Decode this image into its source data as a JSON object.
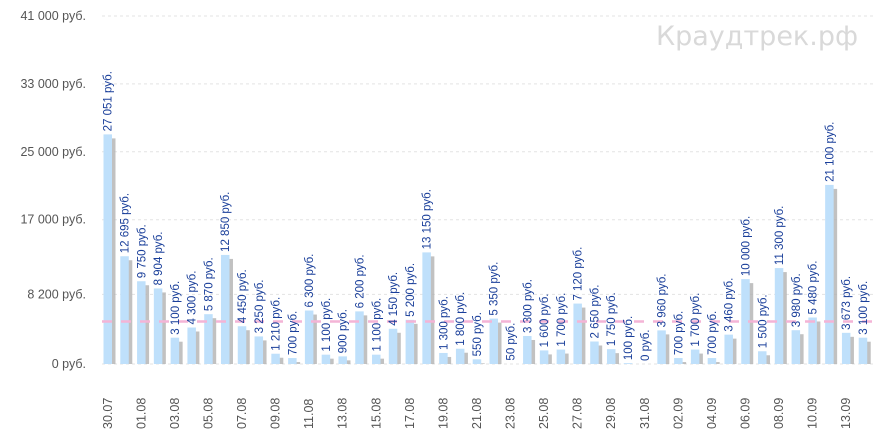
{
  "watermark": "Краудтрек.рф",
  "colors": {
    "bar": "#bfe0fb",
    "shadow": "#b2b2b2",
    "label": "#1a3f9a",
    "avg_line": "#f4b4d6",
    "grid": "#e3e3e3",
    "axis_text": "#555555"
  },
  "chart_data": {
    "type": "bar",
    "ylim": [
      0,
      41000
    ],
    "y_ticks": [
      {
        "value": 0,
        "label": "0 руб."
      },
      {
        "value": 8200,
        "label": "8 200 руб."
      },
      {
        "value": 17000,
        "label": "17 000 руб."
      },
      {
        "value": 25000,
        "label": "25 000 руб."
      },
      {
        "value": 33000,
        "label": "33 000 руб."
      },
      {
        "value": 41000,
        "label": "41 000 руб."
      }
    ],
    "average": 5000,
    "x_tick_labels": [
      "30.07",
      "01.08",
      "03.08",
      "05.08",
      "07.08",
      "09.08",
      "11.08",
      "13.08",
      "15.08",
      "17.08",
      "19.08",
      "21.08",
      "23.08",
      "25.08",
      "27.08",
      "29.08",
      "31.08",
      "02.09",
      "04.09",
      "06.09",
      "08.09",
      "10.09",
      "13.09"
    ],
    "bars": [
      {
        "value": 27051,
        "label": "27 051 руб."
      },
      {
        "value": 12695,
        "label": "12 695 руб."
      },
      {
        "value": 9750,
        "label": "9 750 руб."
      },
      {
        "value": 8904,
        "label": "8 904 руб."
      },
      {
        "value": 3100,
        "label": "3 100 руб."
      },
      {
        "value": 4300,
        "label": "4 300 руб."
      },
      {
        "value": 5870,
        "label": "5 870 руб."
      },
      {
        "value": 12850,
        "label": "12 850 руб."
      },
      {
        "value": 4450,
        "label": "4 450 руб."
      },
      {
        "value": 3250,
        "label": "3 250 руб."
      },
      {
        "value": 1210,
        "label": "1 210 руб."
      },
      {
        "value": 700,
        "label": "700 руб."
      },
      {
        "value": 6300,
        "label": "6 300 руб."
      },
      {
        "value": 1100,
        "label": "1 100 руб."
      },
      {
        "value": 900,
        "label": "900 руб."
      },
      {
        "value": 6200,
        "label": "6 200 руб."
      },
      {
        "value": 1100,
        "label": "1 100 руб."
      },
      {
        "value": 4150,
        "label": "4 150 руб."
      },
      {
        "value": 5200,
        "label": "5 200 руб."
      },
      {
        "value": 13150,
        "label": "13 150 руб."
      },
      {
        "value": 1300,
        "label": "1 300 руб."
      },
      {
        "value": 1800,
        "label": "1 800 руб."
      },
      {
        "value": 550,
        "label": "550 руб."
      },
      {
        "value": 5350,
        "label": "5 350 руб."
      },
      {
        "value": 50,
        "label": "50 руб."
      },
      {
        "value": 3300,
        "label": "3 300 руб."
      },
      {
        "value": 1600,
        "label": "1 600 руб."
      },
      {
        "value": 1700,
        "label": "1 700 руб."
      },
      {
        "value": 7120,
        "label": "7 120 руб."
      },
      {
        "value": 2650,
        "label": "2 650 руб."
      },
      {
        "value": 1750,
        "label": "1 750 руб."
      },
      {
        "value": 100,
        "label": "100 руб."
      },
      {
        "value": 0,
        "label": "0 руб."
      },
      {
        "value": 3960,
        "label": "3 960 руб."
      },
      {
        "value": 700,
        "label": "700 руб."
      },
      {
        "value": 1700,
        "label": "1 700 руб."
      },
      {
        "value": 700,
        "label": "700 руб."
      },
      {
        "value": 3460,
        "label": "3 460 руб."
      },
      {
        "value": 10000,
        "label": "10 000 руб."
      },
      {
        "value": 1500,
        "label": "1 500 руб."
      },
      {
        "value": 11300,
        "label": "11 300 руб."
      },
      {
        "value": 3980,
        "label": "3 980 руб."
      },
      {
        "value": 5480,
        "label": "5 480 руб."
      },
      {
        "value": 21100,
        "label": "21 100 руб."
      },
      {
        "value": 3673,
        "label": "3 673 руб."
      },
      {
        "value": 3100,
        "label": "3 100 руб."
      }
    ]
  }
}
